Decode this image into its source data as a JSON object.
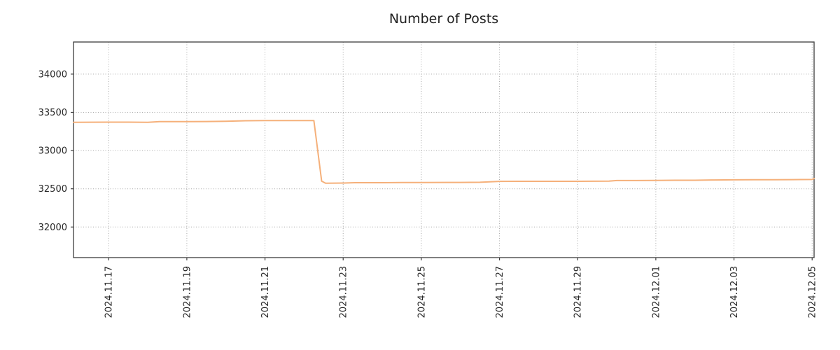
{
  "chart_data": {
    "type": "line",
    "title": "Number of Posts",
    "xlabel": "",
    "ylabel": "",
    "grid": "dotted",
    "legend_position": "none",
    "line_color": "#f5b07a",
    "axis_color": "#3c3c3c",
    "grid_color": "#aaaaaa",
    "tick_label_color": "#262626",
    "y_ticks": [
      32000,
      32500,
      33000,
      33500,
      34000
    ],
    "x_tick_days": [
      0,
      2,
      4,
      6,
      8,
      10,
      12,
      14,
      16,
      18
    ],
    "x_tick_labels": [
      "2024.11.17",
      "2024.11.19",
      "2024.11.21",
      "2024.11.23",
      "2024.11.25",
      "2024.11.27",
      "2024.11.29",
      "2024.12.01",
      "2024.12.03",
      "2024.12.05"
    ],
    "xlim": [
      -0.9,
      18.05
    ],
    "ylim": [
      31600,
      34420
    ],
    "series": [
      {
        "name": "Number of Posts",
        "points": [
          [
            -0.9,
            33370
          ],
          [
            0,
            33372
          ],
          [
            0.5,
            33372
          ],
          [
            1,
            33370
          ],
          [
            1.3,
            33378
          ],
          [
            2,
            33378
          ],
          [
            2.5,
            33380
          ],
          [
            3,
            33383
          ],
          [
            3.5,
            33390
          ],
          [
            4,
            33392
          ],
          [
            4.4,
            33393
          ],
          [
            5,
            33393
          ],
          [
            5.25,
            33393
          ],
          [
            5.45,
            32600
          ],
          [
            5.55,
            32572
          ],
          [
            6,
            32575
          ],
          [
            6.3,
            32580
          ],
          [
            7,
            32580
          ],
          [
            7.5,
            32582
          ],
          [
            8,
            32582
          ],
          [
            9,
            32583
          ],
          [
            9.5,
            32585
          ],
          [
            10,
            32597
          ],
          [
            10.5,
            32598
          ],
          [
            11,
            32598
          ],
          [
            12,
            32598
          ],
          [
            12.8,
            32600
          ],
          [
            13,
            32608
          ],
          [
            13.5,
            32608
          ],
          [
            14,
            32610
          ],
          [
            14.5,
            32612
          ],
          [
            15,
            32612
          ],
          [
            15.5,
            32615
          ],
          [
            16,
            32617
          ],
          [
            16.5,
            32618
          ],
          [
            17,
            32618
          ],
          [
            17.5,
            32620
          ],
          [
            18,
            32622
          ],
          [
            18.05,
            32635
          ]
        ]
      }
    ]
  }
}
